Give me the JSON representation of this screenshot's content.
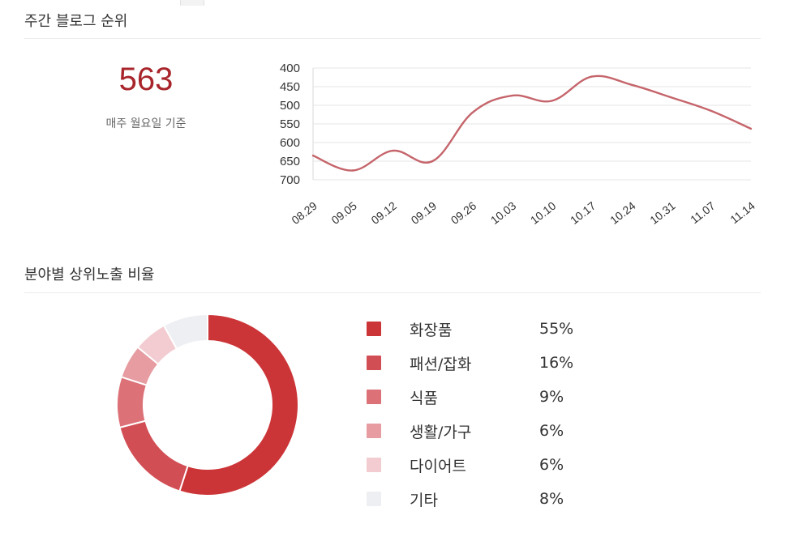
{
  "weekly_rank": {
    "title": "주간 블로그 순위",
    "value": "563",
    "caption": "매주 월요일 기준"
  },
  "category_share": {
    "title": "분야별 상위노출 비율"
  },
  "chart_data": [
    {
      "type": "line",
      "title": "",
      "xlabel": "",
      "ylabel": "",
      "y_reversed": true,
      "ylim": [
        400,
        700
      ],
      "y_ticks": [
        400,
        450,
        500,
        550,
        600,
        650,
        700
      ],
      "categories": [
        "08.29",
        "09.05",
        "09.12",
        "09.19",
        "09.26",
        "10.03",
        "10.10",
        "10.17",
        "10.24",
        "10.31",
        "11.07",
        "11.14"
      ],
      "series": [
        {
          "color": "#c5656b",
          "values": [
            635,
            675,
            622,
            650,
            520,
            474,
            488,
            423,
            445,
            479,
            515,
            563
          ]
        }
      ],
      "grid": true,
      "smooth": true
    },
    {
      "type": "pie",
      "donut": true,
      "categories": [
        "화장품",
        "패션/잡화",
        "식품",
        "생활/가구",
        "다이어트",
        "기타"
      ],
      "values": [
        55,
        16,
        9,
        6,
        6,
        8
      ],
      "labels": [
        "55%",
        "16%",
        "9%",
        "6%",
        "6%",
        "8%"
      ],
      "colors": [
        "#cc3538",
        "#d24e55",
        "#dc7177",
        "#e69ca1",
        "#f2ccd0",
        "#eeeff2"
      ],
      "legend": "right"
    }
  ]
}
